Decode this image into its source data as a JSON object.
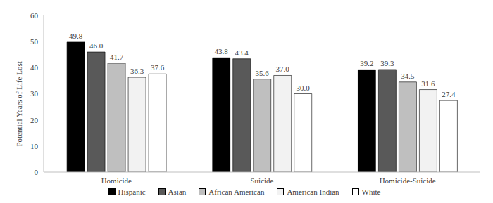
{
  "chart_data": {
    "type": "bar",
    "categories": [
      "Homicide",
      "Suicide",
      "Homicide-Suicide"
    ],
    "y_label": "Potential Years of Life Lost",
    "series": [
      {
        "name": "Hispanic",
        "color": "#000000",
        "values": [
          49.8,
          43.8,
          39.2
        ],
        "value_labels": [
          "49.8",
          "43.8",
          "39.2"
        ]
      },
      {
        "name": "Asian",
        "color": "#595959",
        "values": [
          46.0,
          43.4,
          39.3
        ],
        "value_labels": [
          "46.0",
          "43.4",
          "39.3"
        ]
      },
      {
        "name": "African American",
        "color": "#bfbfbf",
        "values": [
          41.7,
          35.6,
          34.5
        ],
        "value_labels": [
          "41.7",
          "35.6",
          "34.5"
        ]
      },
      {
        "name": "American Indian",
        "color": "#f2f2f2",
        "values": [
          36.3,
          37.0,
          31.6
        ],
        "value_labels": [
          "36.3",
          "37.0",
          "31.6"
        ]
      },
      {
        "name": "White",
        "color": "#ffffff",
        "values": [
          37.6,
          30.0,
          27.4
        ],
        "value_labels": [
          "37.6",
          "30.0",
          "27.4"
        ]
      }
    ],
    "ylim": [
      0,
      60
    ],
    "yticks": [
      0,
      10,
      20,
      30,
      40,
      50,
      60
    ],
    "grid": false,
    "data_labels": true,
    "legend": "bottom"
  }
}
